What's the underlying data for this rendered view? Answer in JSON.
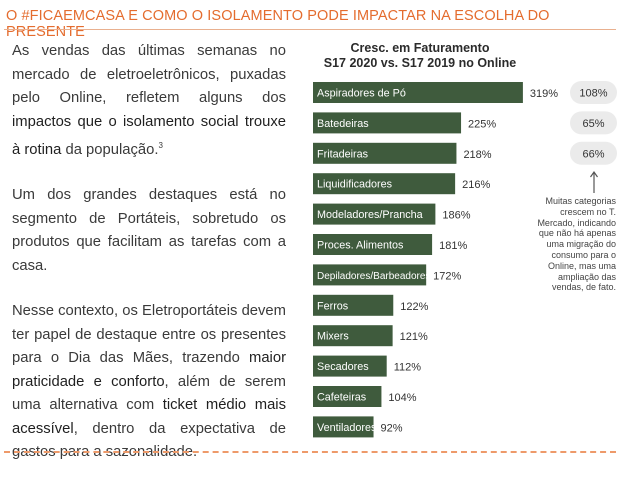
{
  "header": {
    "title": "O #FICAEMCASA E COMO O ISOLAMENTO PODE IMPACTAR NA ESCOLHA DO PRESENTE"
  },
  "body": {
    "p1_a": "As vendas das últimas semanas no mercado de eletroeletrônicos, puxadas pelo Online, refletem alguns dos ",
    "p1_b": "impactos que o isolamento social trouxe à rotina",
    "p1_c": " da população.",
    "p1_sup": "3",
    "p2": "Um dos grandes destaques está no segmento de Portáteis, sobretudo os produtos que facilitam as tarefas com a casa.",
    "p3_a": "Nesse contexto, os Eletroportáteis devem ter papel de destaque entre os presentes para o Dia das Mães, trazendo ",
    "p3_b": "maior praticidade e conforto",
    "p3_c": ", além de serem uma alternativa com ",
    "p3_d": "ticket médio mais acessível",
    "p3_e": ", dentro da expectativa de gastos para a sazonalidade."
  },
  "chart_title_line1": "Cresc. em Faturamento",
  "chart_title_line2": "S17 2020 vs. S17 2019 no Online",
  "note": "Muitas categorias crescem no T. Mercado, indicando que não há apenas uma migração do consumo para o Online, mas uma ampliação das vendas, de fato.",
  "colors": {
    "bar": "#3f5b3d",
    "accent": "#e46c2e",
    "pill": "#ebebeb"
  },
  "chart_data": {
    "type": "bar",
    "orientation": "horizontal",
    "categories": [
      "Aspiradores de Pó",
      "Batedeiras",
      "Fritadeiras",
      "Liquidificadores",
      "Modeladores/Prancha",
      "Proces. Alimentos",
      "Depiladores/Barbeadores",
      "Ferros",
      "Mixers",
      "Secadores",
      "Cafeteiras",
      "Ventiladores"
    ],
    "values": [
      319,
      225,
      218,
      216,
      186,
      181,
      172,
      122,
      121,
      112,
      104,
      92
    ],
    "value_labels": [
      "319%",
      "225%",
      "218%",
      "216%",
      "186%",
      "181%",
      "172%",
      "122%",
      "121%",
      "112%",
      "104%",
      "92%"
    ],
    "total_market": [
      {
        "category": "Aspiradores de Pó",
        "value": 108,
        "label": "108%"
      },
      {
        "category": "Batedeiras",
        "value": 65,
        "label": "65%"
      },
      {
        "category": "Fritadeiras",
        "value": 66,
        "label": "66%"
      }
    ],
    "title": "Cresc. em Faturamento S17 2020 vs. S17 2019 no Online"
  }
}
